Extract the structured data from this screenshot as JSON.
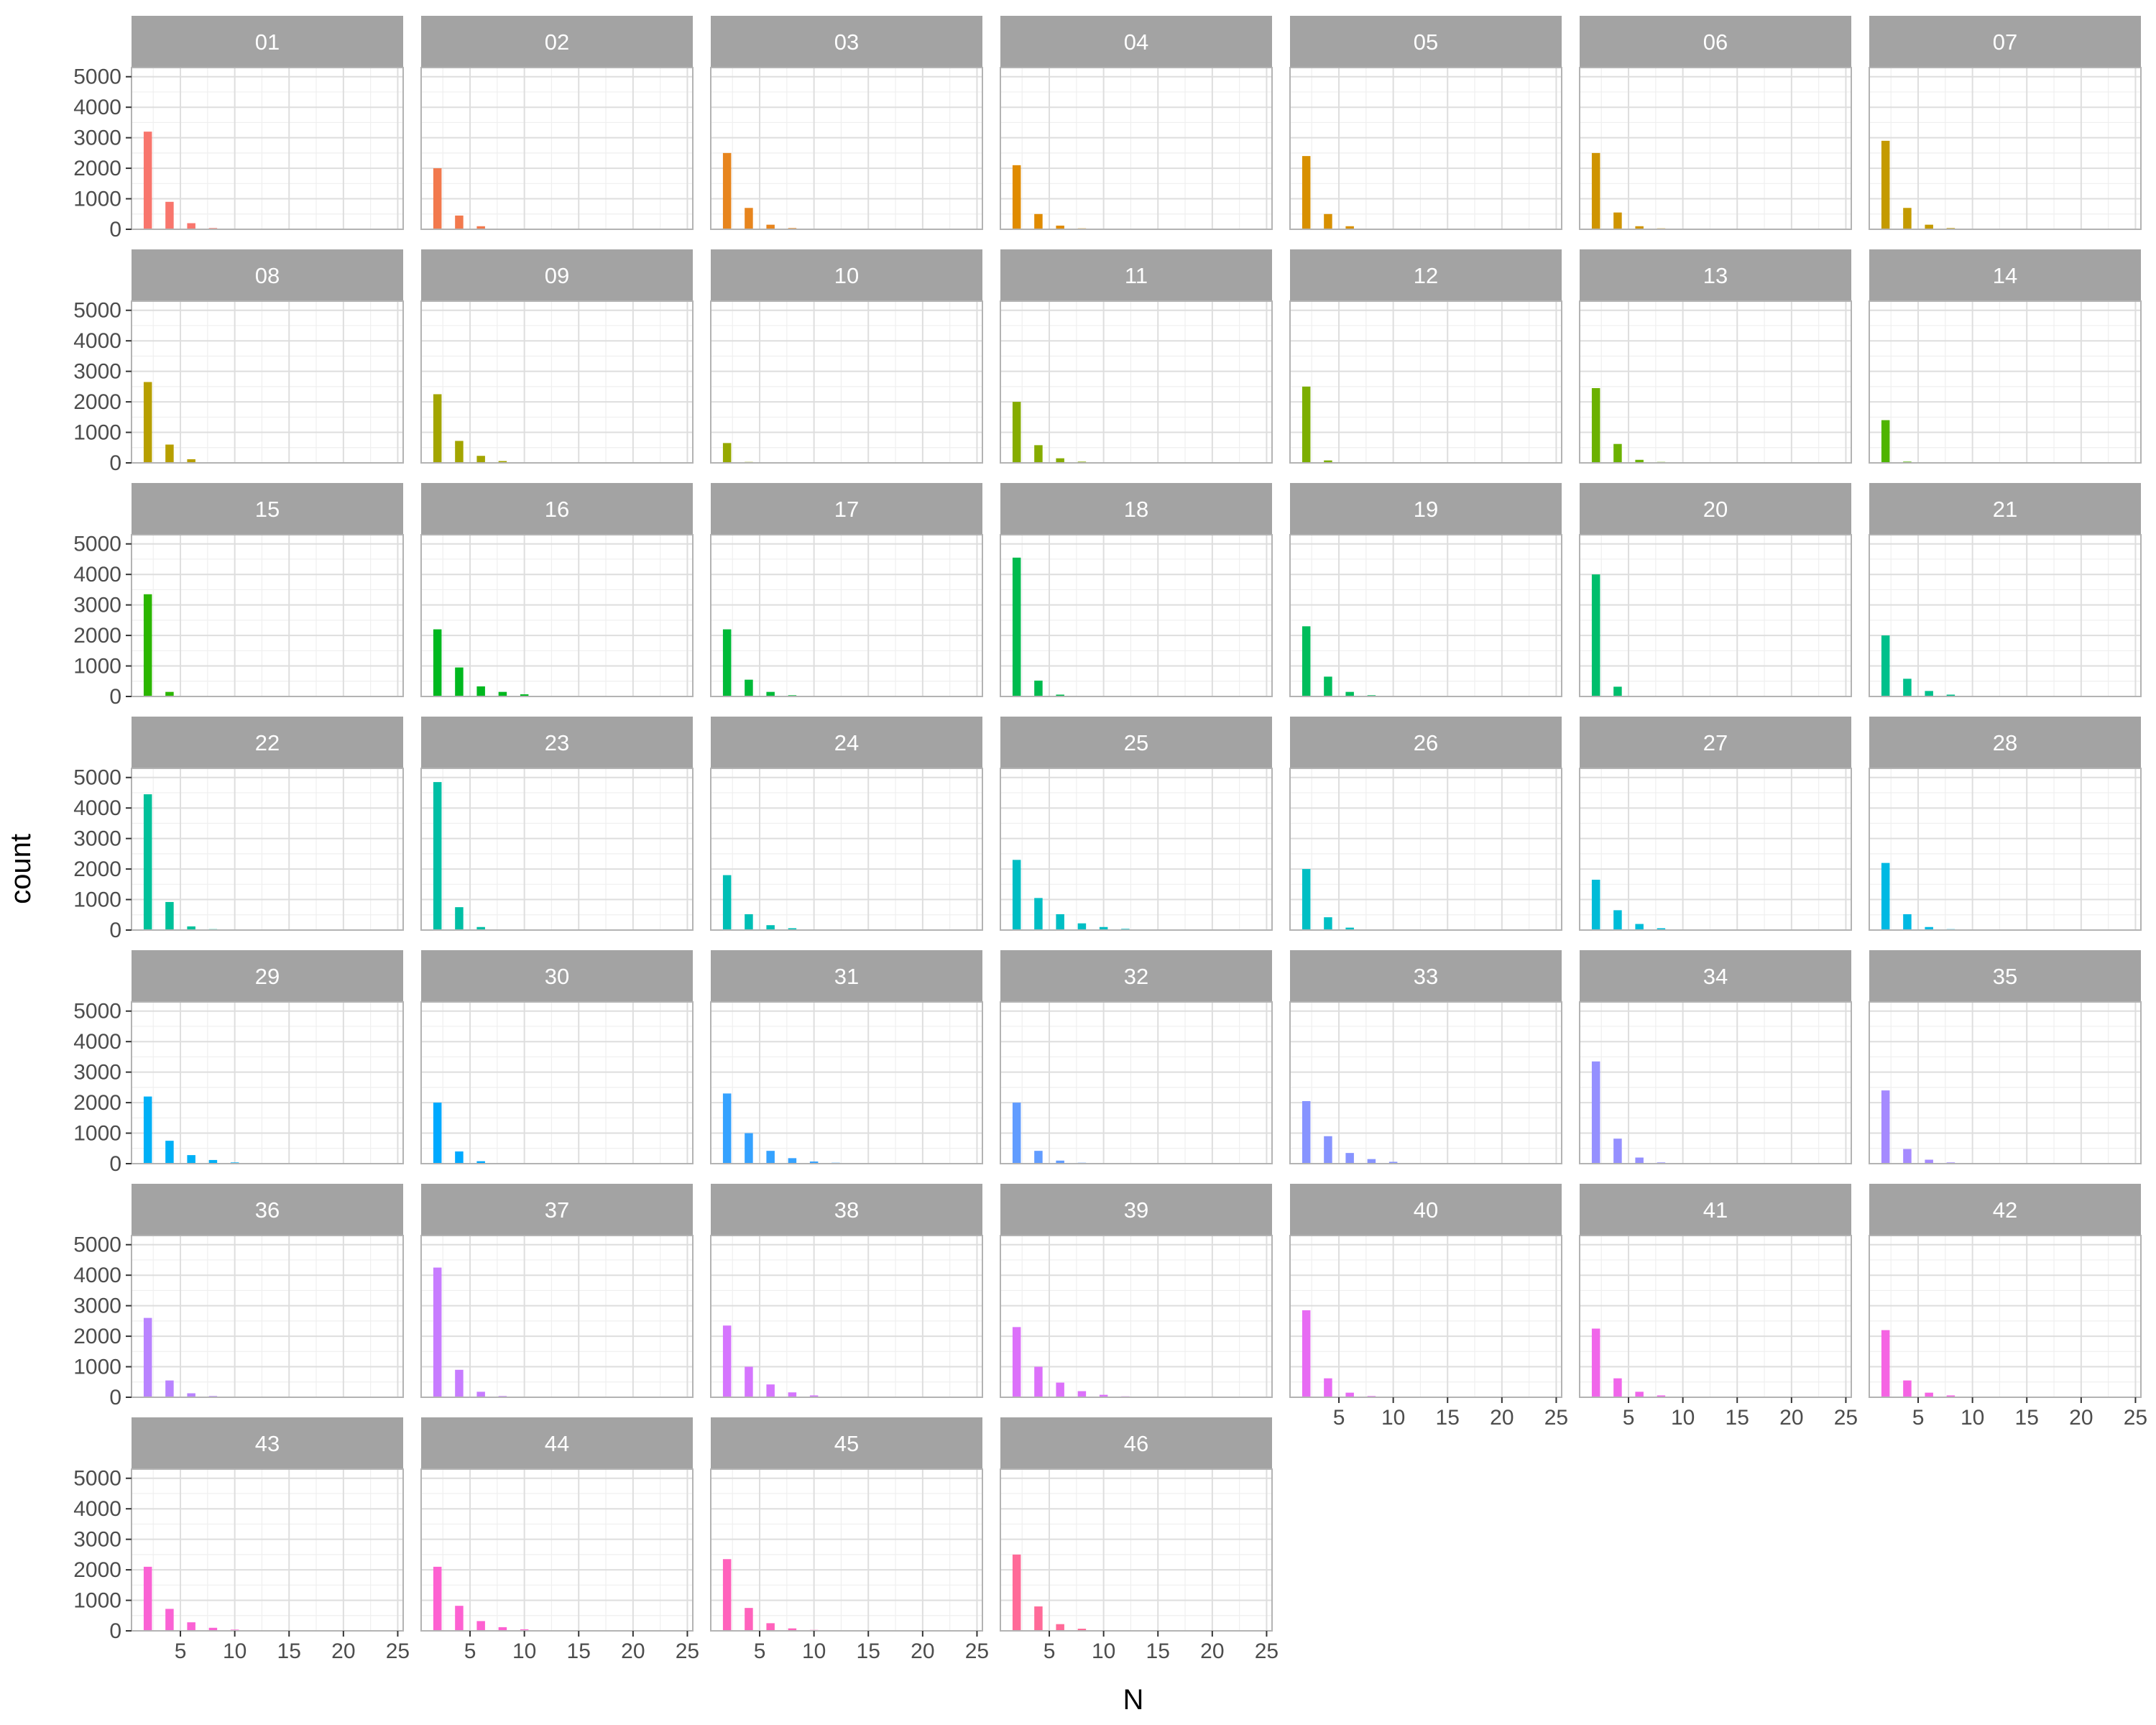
{
  "chart_data": {
    "type": "bar",
    "layout": "faceted",
    "xlabel": "N",
    "ylabel": "count",
    "xlim": [
      0.5,
      25.5
    ],
    "ylim": [
      0,
      5000
    ],
    "x_ticks": [
      5,
      10,
      15,
      20,
      25
    ],
    "y_ticks": [
      0,
      1000,
      2000,
      3000,
      4000,
      5000
    ],
    "x": [
      2,
      4,
      6,
      8,
      10,
      12,
      14
    ],
    "grid": true,
    "legend": "none",
    "colors": [
      "#F8766D",
      "#F2794D",
      "#E7851E",
      "#E08B00",
      "#D89000",
      "#CF9400",
      "#C49A00",
      "#B79F00",
      "#A3A500",
      "#96A900",
      "#86AC00",
      "#7CAE00",
      "#6BB100",
      "#4FB400",
      "#2BB600",
      "#00B81F",
      "#00BA38",
      "#00BB4E",
      "#00BD5C",
      "#00BE6C",
      "#00C08B",
      "#00C19A",
      "#00BFA5",
      "#00BFB5",
      "#00BEC4",
      "#00BFC4",
      "#00BCD8",
      "#00B9E3",
      "#00B0F6",
      "#00A9FF",
      "#35A2FF",
      "#619CFF",
      "#8794FF",
      "#9590FF",
      "#A58AFF",
      "#B983FF",
      "#C77CFF",
      "#D575FE",
      "#DC71FA",
      "#E76BF3",
      "#F066EA",
      "#F564E3",
      "#FA62D4",
      "#FD61D1",
      "#FF62BC",
      "#FF6A98"
    ],
    "series": [
      {
        "name": "01",
        "values": [
          3200,
          900,
          200,
          40,
          10,
          0,
          0
        ]
      },
      {
        "name": "02",
        "values": [
          2000,
          450,
          100,
          20,
          5,
          0,
          0
        ]
      },
      {
        "name": "03",
        "values": [
          2500,
          700,
          150,
          40,
          10,
          0,
          0
        ]
      },
      {
        "name": "04",
        "values": [
          2100,
          500,
          120,
          30,
          5,
          0,
          0
        ]
      },
      {
        "name": "05",
        "values": [
          2400,
          500,
          100,
          20,
          5,
          0,
          0
        ]
      },
      {
        "name": "06",
        "values": [
          2500,
          550,
          100,
          30,
          5,
          0,
          0
        ]
      },
      {
        "name": "07",
        "values": [
          2900,
          700,
          150,
          40,
          10,
          0,
          0
        ]
      },
      {
        "name": "08",
        "values": [
          2650,
          600,
          120,
          20,
          5,
          0,
          0
        ]
      },
      {
        "name": "09",
        "values": [
          2250,
          720,
          230,
          60,
          20,
          0,
          0
        ]
      },
      {
        "name": "10",
        "values": [
          650,
          30,
          5,
          0,
          0,
          0,
          0
        ]
      },
      {
        "name": "11",
        "values": [
          2000,
          580,
          150,
          40,
          20,
          0,
          0
        ]
      },
      {
        "name": "12",
        "values": [
          2500,
          80,
          5,
          0,
          0,
          0,
          0
        ]
      },
      {
        "name": "13",
        "values": [
          2450,
          620,
          100,
          30,
          5,
          0,
          0
        ]
      },
      {
        "name": "14",
        "values": [
          1400,
          40,
          0,
          0,
          0,
          0,
          0
        ]
      },
      {
        "name": "15",
        "values": [
          3350,
          150,
          20,
          5,
          0,
          0,
          0
        ]
      },
      {
        "name": "16",
        "values": [
          2200,
          950,
          330,
          150,
          70,
          20,
          10
        ]
      },
      {
        "name": "17",
        "values": [
          2200,
          550,
          150,
          40,
          10,
          0,
          0
        ]
      },
      {
        "name": "18",
        "values": [
          4550,
          520,
          60,
          10,
          0,
          0,
          0
        ]
      },
      {
        "name": "19",
        "values": [
          2300,
          650,
          150,
          40,
          10,
          0,
          0
        ]
      },
      {
        "name": "20",
        "values": [
          4000,
          320,
          20,
          5,
          0,
          0,
          0
        ]
      },
      {
        "name": "21",
        "values": [
          2000,
          580,
          180,
          60,
          10,
          0,
          0
        ]
      },
      {
        "name": "22",
        "values": [
          4450,
          920,
          120,
          30,
          5,
          0,
          0
        ]
      },
      {
        "name": "23",
        "values": [
          4850,
          750,
          100,
          20,
          5,
          0,
          0
        ]
      },
      {
        "name": "24",
        "values": [
          1800,
          520,
          160,
          60,
          20,
          0,
          0
        ]
      },
      {
        "name": "25",
        "values": [
          2300,
          1050,
          520,
          220,
          100,
          40,
          20
        ]
      },
      {
        "name": "26",
        "values": [
          2000,
          420,
          80,
          20,
          5,
          0,
          0
        ]
      },
      {
        "name": "27",
        "values": [
          1650,
          650,
          200,
          60,
          20,
          0,
          0
        ]
      },
      {
        "name": "28",
        "values": [
          2200,
          520,
          100,
          30,
          5,
          0,
          0
        ]
      },
      {
        "name": "29",
        "values": [
          2200,
          750,
          280,
          120,
          40,
          20,
          0
        ]
      },
      {
        "name": "30",
        "values": [
          2000,
          400,
          80,
          20,
          5,
          0,
          0
        ]
      },
      {
        "name": "31",
        "values": [
          2300,
          1000,
          420,
          180,
          70,
          30,
          10
        ]
      },
      {
        "name": "32",
        "values": [
          2000,
          420,
          100,
          30,
          5,
          0,
          0
        ]
      },
      {
        "name": "33",
        "values": [
          2050,
          900,
          350,
          150,
          60,
          20,
          10
        ]
      },
      {
        "name": "34",
        "values": [
          3350,
          820,
          200,
          40,
          10,
          0,
          0
        ]
      },
      {
        "name": "35",
        "values": [
          2400,
          480,
          130,
          40,
          10,
          0,
          0
        ]
      },
      {
        "name": "36",
        "values": [
          2600,
          550,
          130,
          40,
          10,
          0,
          0
        ]
      },
      {
        "name": "37",
        "values": [
          4250,
          900,
          180,
          40,
          10,
          0,
          0
        ]
      },
      {
        "name": "38",
        "values": [
          2350,
          1000,
          420,
          160,
          60,
          20,
          10
        ]
      },
      {
        "name": "39",
        "values": [
          2300,
          1000,
          480,
          200,
          80,
          30,
          10
        ]
      },
      {
        "name": "40",
        "values": [
          2850,
          620,
          150,
          40,
          10,
          0,
          0
        ]
      },
      {
        "name": "41",
        "values": [
          2250,
          620,
          180,
          60,
          20,
          0,
          0
        ]
      },
      {
        "name": "42",
        "values": [
          2200,
          550,
          150,
          60,
          20,
          0,
          0
        ]
      },
      {
        "name": "43",
        "values": [
          2100,
          720,
          280,
          100,
          40,
          10,
          0
        ]
      },
      {
        "name": "44",
        "values": [
          2100,
          820,
          320,
          120,
          50,
          20,
          10
        ]
      },
      {
        "name": "45",
        "values": [
          2350,
          750,
          250,
          80,
          30,
          10,
          0
        ]
      },
      {
        "name": "46",
        "values": [
          2500,
          800,
          220,
          70,
          20,
          0,
          0
        ]
      }
    ]
  }
}
